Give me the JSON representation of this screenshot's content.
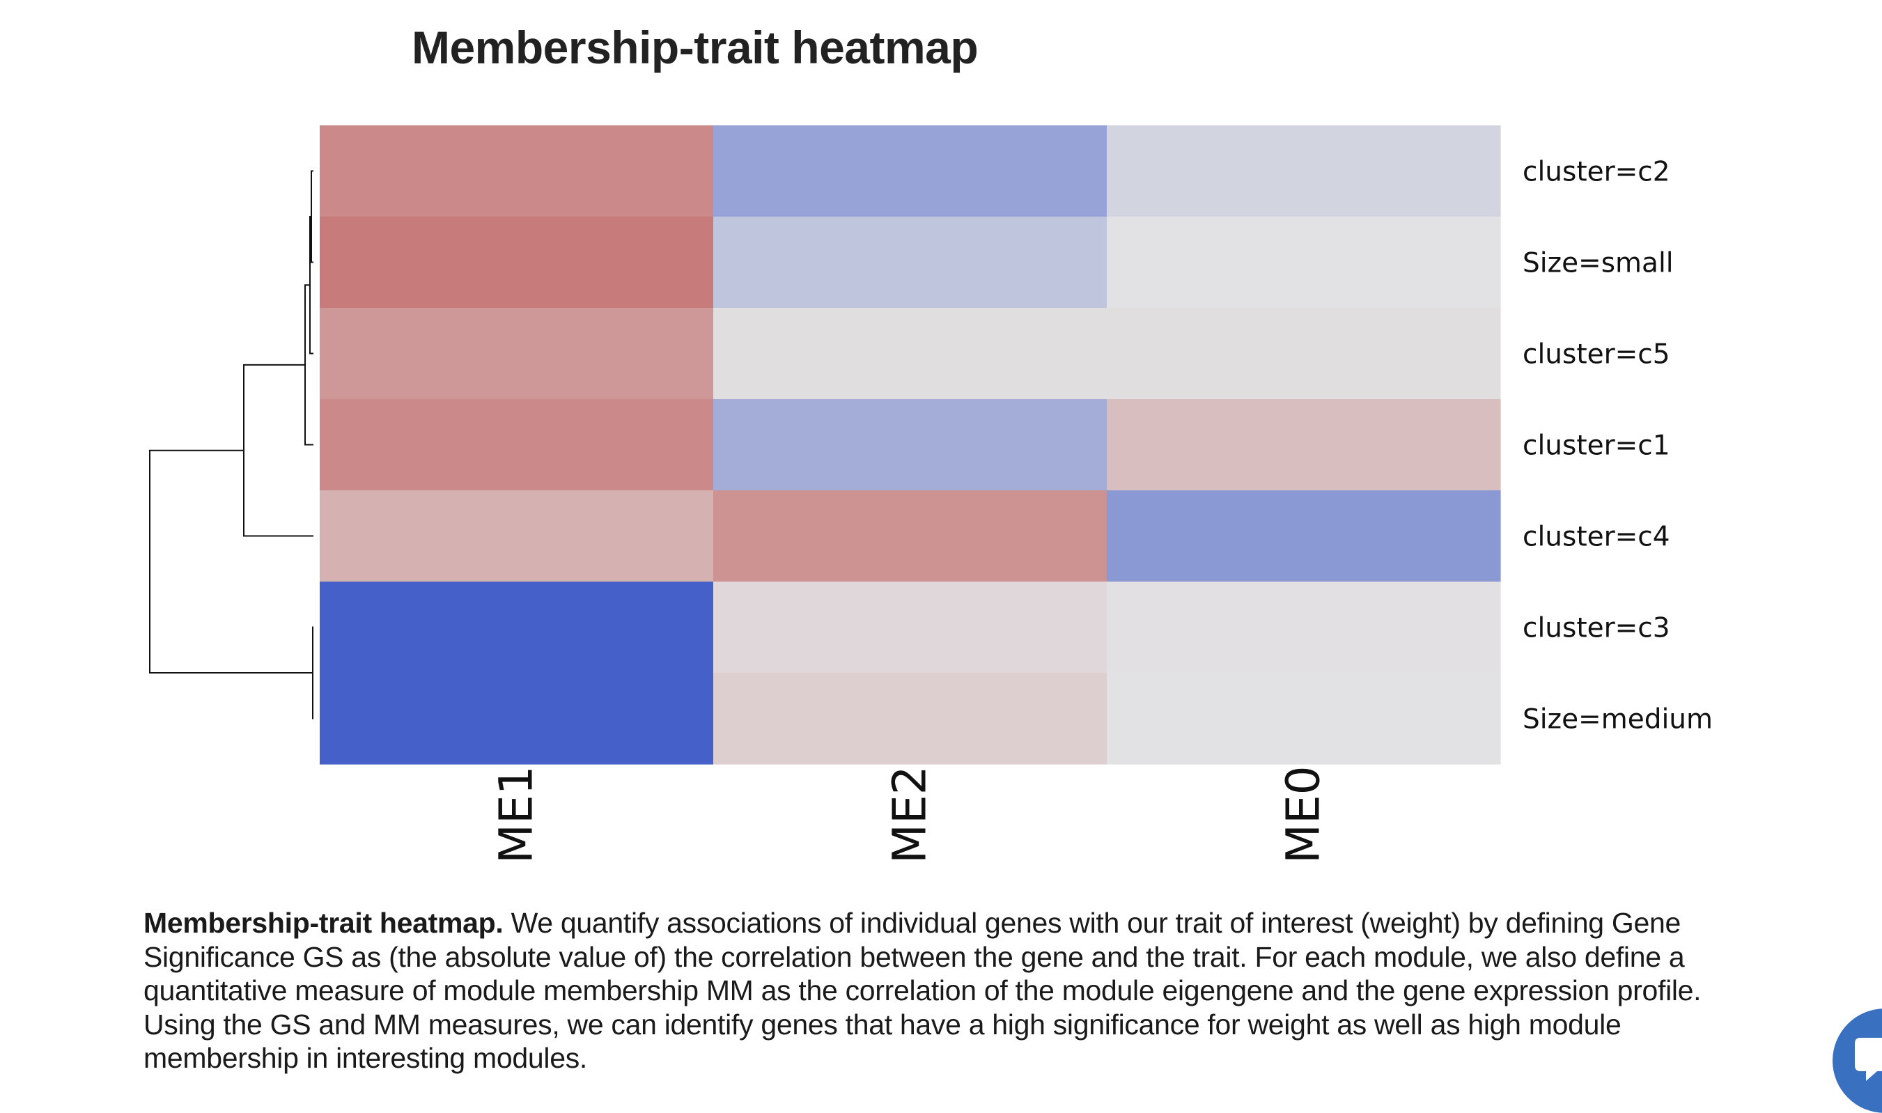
{
  "page": {
    "caption_lead": "Membership-trait heatmap.",
    "caption_body": " We quantify associations of individual genes with our trait of interest (weight) by defining Gene Significance GS as (the absolute value of) the correlation between the gene and the trait. For each module, we also define a quantitative measure of module membership MM as the correlation of the module eigengene and the gene expression profile. Using the GS and MM measures, we can identify genes that have a high significance for weight as well as high module membership in interesting modules.",
    "chat_icon": "chat-bubble-icon"
  },
  "chart_data": {
    "type": "heatmap",
    "title": "Membership-trait heatmap",
    "columns": [
      "ME1",
      "ME2",
      "ME0"
    ],
    "rows": [
      "cluster=c2",
      "Size=small",
      "cluster=c5",
      "cluster=c1",
      "cluster=c4",
      "cluster=c3",
      "Size=medium"
    ],
    "values": [
      [
        0.62,
        -0.48,
        -0.1
      ],
      [
        0.72,
        -0.22,
        0.0
      ],
      [
        0.52,
        0.02,
        0.02
      ],
      [
        0.62,
        -0.4,
        0.25
      ],
      [
        0.34,
        0.56,
        -0.56
      ],
      [
        -1.0,
        0.07,
        0.01
      ],
      [
        -1.0,
        0.13,
        0.0
      ]
    ],
    "color_scale": {
      "low": "#4560c8",
      "mid": "#e2e1e3",
      "high": "#bd5452",
      "min": -1,
      "max": 1
    },
    "dendrogram": "left",
    "legend": "none"
  }
}
